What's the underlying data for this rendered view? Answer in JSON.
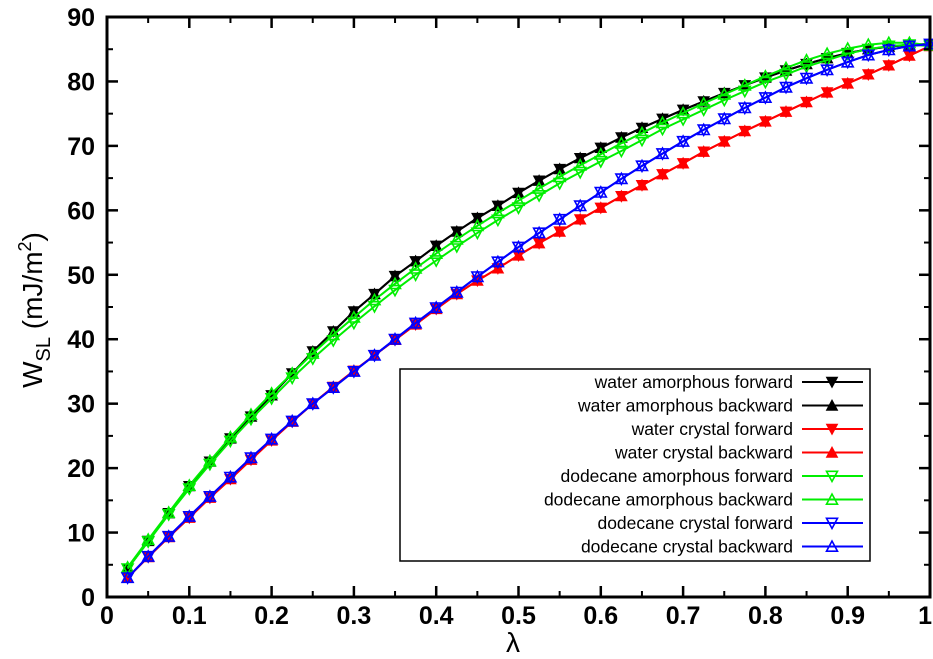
{
  "chart_data": {
    "type": "line",
    "xlabel": "λ",
    "ylabel": {
      "main": "W",
      "sub": "SL",
      "unit_open": " (mJ/m",
      "unit_sup": "2",
      "unit_close": ")"
    },
    "xlim": [
      0,
      1
    ],
    "ylim": [
      0,
      90
    ],
    "xticks": [
      "0",
      "0.1",
      "0.2",
      "0.3",
      "0.4",
      "0.5",
      "0.6",
      "0.7",
      "0.8",
      "0.9",
      "1"
    ],
    "yticks": [
      "0",
      "10",
      "20",
      "30",
      "40",
      "50",
      "60",
      "70",
      "80",
      "90"
    ],
    "grid": false,
    "legend_position": "bottom-right",
    "x": [
      0.025,
      0.05,
      0.075,
      0.1,
      0.125,
      0.15,
      0.175,
      0.2,
      0.225,
      0.25,
      0.275,
      0.3,
      0.325,
      0.35,
      0.375,
      0.4,
      0.425,
      0.45,
      0.475,
      0.5,
      0.525,
      0.55,
      0.575,
      0.6,
      0.625,
      0.65,
      0.675,
      0.7,
      0.725,
      0.75,
      0.775,
      0.8,
      0.825,
      0.85,
      0.875,
      0.9,
      0.925,
      0.95,
      0.975,
      1.0
    ],
    "series": [
      {
        "name": "water amorphous forward",
        "color": "#000000",
        "marker": "triangle-down",
        "values": [
          4.4,
          8.7,
          13.0,
          17.2,
          21.0,
          24.6,
          28.0,
          31.3,
          34.7,
          38.1,
          41.2,
          44.3,
          47.0,
          49.8,
          52.1,
          54.5,
          56.7,
          58.8,
          60.7,
          62.7,
          64.6,
          66.4,
          68.1,
          69.7,
          71.3,
          72.8,
          74.2,
          75.6,
          76.9,
          78.2,
          79.4,
          80.6,
          81.7,
          82.7,
          83.6,
          84.4,
          85.0,
          85.4,
          85.7,
          85.8
        ]
      },
      {
        "name": "water amorphous backward",
        "color": "#000000",
        "marker": "triangle-up",
        "values": [
          4.4,
          8.7,
          13.0,
          17.2,
          21.0,
          24.6,
          28.0,
          31.3,
          34.7,
          38.1,
          41.2,
          44.3,
          47.0,
          49.8,
          52.1,
          54.5,
          56.7,
          58.8,
          60.7,
          62.7,
          64.6,
          66.4,
          68.1,
          69.7,
          71.3,
          72.8,
          74.2,
          75.6,
          76.9,
          78.2,
          79.4,
          80.6,
          81.7,
          82.7,
          83.6,
          84.4,
          85.0,
          85.4,
          85.7,
          85.8
        ]
      },
      {
        "name": "water crystal forward",
        "color": "#ff0000",
        "marker": "triangle-down",
        "values": [
          3.0,
          6.2,
          9.3,
          12.3,
          15.4,
          18.3,
          21.3,
          24.3,
          27.2,
          30.0,
          32.6,
          35.1,
          37.5,
          39.9,
          42.3,
          44.7,
          47.0,
          49.1,
          51.0,
          53.0,
          54.9,
          56.7,
          58.6,
          60.4,
          62.2,
          63.9,
          65.6,
          67.3,
          69.1,
          70.7,
          72.3,
          73.8,
          75.3,
          76.8,
          78.3,
          79.7,
          81.1,
          82.5,
          84.0,
          85.5
        ]
      },
      {
        "name": "water crystal backward",
        "color": "#ff0000",
        "marker": "triangle-up",
        "values": [
          3.0,
          6.2,
          9.3,
          12.3,
          15.4,
          18.3,
          21.3,
          24.3,
          27.2,
          30.0,
          32.6,
          35.1,
          37.5,
          39.9,
          42.3,
          44.7,
          47.0,
          49.1,
          51.0,
          53.0,
          54.9,
          56.7,
          58.6,
          60.4,
          62.2,
          63.9,
          65.6,
          67.3,
          69.1,
          70.7,
          72.3,
          73.8,
          75.3,
          76.8,
          78.3,
          79.7,
          81.1,
          82.5,
          84.0,
          85.5
        ]
      },
      {
        "name": "dodecane amorphous forward",
        "color": "#00ee00",
        "marker": "triangle-down-open",
        "values": [
          4.4,
          8.6,
          12.8,
          16.8,
          20.6,
          24.2,
          27.6,
          30.8,
          34.0,
          37.0,
          39.8,
          42.5,
          45.1,
          47.6,
          50.0,
          52.2,
          54.4,
          56.5,
          58.5,
          60.4,
          62.3,
          64.2,
          65.9,
          67.6,
          69.2,
          70.9,
          72.6,
          74.1,
          75.6,
          77.1,
          78.5,
          79.9,
          81.1,
          82.3,
          83.3,
          84.3,
          85.0,
          85.5,
          85.7,
          85.5
        ]
      },
      {
        "name": "dodecane amorphous backward",
        "color": "#00ee00",
        "marker": "triangle-up-open",
        "values": [
          4.6,
          8.9,
          13.1,
          17.3,
          21.1,
          24.8,
          28.3,
          31.6,
          34.7,
          37.8,
          40.7,
          43.4,
          46.1,
          48.6,
          51.0,
          53.3,
          55.5,
          57.6,
          59.6,
          61.5,
          63.4,
          65.2,
          67.0,
          68.7,
          70.4,
          72.0,
          73.6,
          75.1,
          76.6,
          78.0,
          79.4,
          80.8,
          82.1,
          83.3,
          84.3,
          85.1,
          85.7,
          86.0,
          86.0,
          85.6
        ]
      },
      {
        "name": "dodecane crystal forward",
        "color": "#0000ff",
        "marker": "triangle-down-open",
        "values": [
          3.0,
          6.3,
          9.4,
          12.5,
          15.6,
          18.6,
          21.6,
          24.5,
          27.3,
          30.0,
          32.5,
          35.0,
          37.5,
          40.0,
          42.5,
          44.9,
          47.3,
          49.7,
          52.0,
          54.3,
          56.5,
          58.6,
          60.7,
          62.8,
          64.9,
          66.9,
          68.8,
          70.7,
          72.5,
          74.2,
          75.9,
          77.5,
          79.1,
          80.5,
          81.8,
          83.0,
          84.1,
          84.9,
          85.5,
          85.8
        ]
      },
      {
        "name": "dodecane crystal backward",
        "color": "#0000ff",
        "marker": "triangle-up-open",
        "values": [
          3.0,
          6.3,
          9.4,
          12.5,
          15.6,
          18.6,
          21.6,
          24.5,
          27.3,
          30.0,
          32.5,
          35.0,
          37.5,
          40.0,
          42.5,
          44.9,
          47.3,
          49.7,
          52.0,
          54.3,
          56.5,
          58.6,
          60.7,
          62.8,
          64.9,
          66.9,
          68.8,
          70.7,
          72.5,
          74.2,
          75.9,
          77.5,
          79.1,
          80.5,
          81.8,
          83.0,
          84.1,
          84.9,
          85.5,
          85.8
        ]
      }
    ]
  }
}
